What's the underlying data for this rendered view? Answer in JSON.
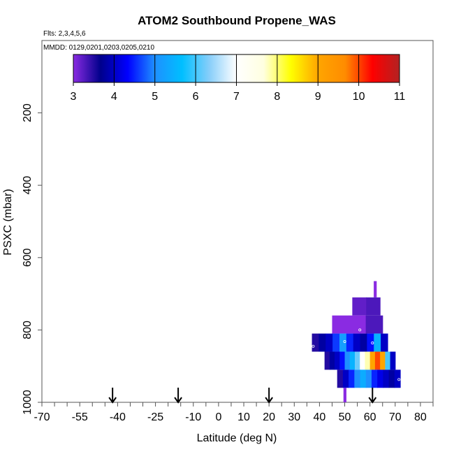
{
  "chart_data": {
    "type": "heatmap",
    "title": "ATOM2 Southbound Propene_WAS",
    "subtitle_flights": "Flts: 2,3,4,5,6",
    "subtitle_dates": "MMDD: 0129,0201,0203,0205,0210",
    "xlabel": "Latitude (deg N)",
    "ylabel": "PSXC (mbar)",
    "xlim": [
      -70,
      85
    ],
    "ylim": [
      1000,
      0
    ],
    "x_ticks": [
      -70,
      -55,
      -40,
      -25,
      -10,
      0,
      10,
      20,
      30,
      40,
      50,
      60,
      70,
      80
    ],
    "x_tick_labels": [
      "-70",
      "-55",
      "-40",
      "-25",
      "-10",
      "0",
      "10",
      "20",
      "30",
      "40",
      "50",
      "60",
      "70",
      "80"
    ],
    "x_minor_ticks": [
      -65,
      -60,
      -50,
      -45,
      -35,
      -30,
      -20,
      -15,
      -5,
      5,
      15,
      25,
      35,
      45,
      55,
      65,
      75,
      85
    ],
    "y_ticks": [
      200,
      400,
      600,
      800,
      1000
    ],
    "y_tick_labels": [
      "200",
      "400",
      "600",
      "800",
      "1000"
    ],
    "colorbar": {
      "range": [
        3,
        11
      ],
      "ticks": [
        3,
        4,
        5,
        6,
        7,
        8,
        9,
        10,
        11
      ],
      "tick_labels": [
        "3",
        "4",
        "5",
        "6",
        "7",
        "8",
        "9",
        "10",
        "11"
      ],
      "colors": [
        "#8a2be2",
        "#00008b",
        "#0000ff",
        "#1e90ff",
        "#00bfff",
        "#87cefa",
        "#ffffff",
        "#ffffe0",
        "#ffff00",
        "#ffa500",
        "#ff8c00",
        "#ff0000",
        "#b22222"
      ]
    },
    "arrows_latitude": [
      -42,
      -16,
      20,
      61
    ],
    "cells": [
      {
        "lat_min": 61.5,
        "lat_max": 62.5,
        "p_min": 665,
        "p_max": 710,
        "values": [
          3.0
        ]
      },
      {
        "lat_min": 53,
        "lat_max": 64,
        "p_min": 710,
        "p_max": 760,
        "values": [
          3.2,
          3.3
        ]
      },
      {
        "lat_min": 45,
        "lat_max": 65,
        "p_min": 760,
        "p_max": 810,
        "values": [
          3.0,
          3.0,
          3.3
        ]
      },
      {
        "lat_min": 37,
        "lat_max": 67,
        "p_min": 810,
        "p_max": 860,
        "values": [
          3.5,
          3.8,
          4.0,
          4.6,
          5.2,
          4.5,
          4.0,
          3.8,
          4.4,
          5.5,
          4.0
        ]
      },
      {
        "lat_min": 42,
        "lat_max": 70,
        "p_min": 860,
        "p_max": 910,
        "values": [
          3.5,
          3.8,
          4.0,
          4.4,
          5.0,
          5.5,
          6.2,
          7.0,
          7.8,
          9.0,
          10.0,
          9.0,
          6.0,
          4.0
        ]
      },
      {
        "lat_min": 47,
        "lat_max": 72,
        "p_min": 910,
        "p_max": 960,
        "values": [
          3.5,
          4.0,
          4.5,
          5.0,
          5.4,
          5.0,
          4.5,
          4.2,
          4.0,
          3.8,
          4.0
        ]
      },
      {
        "lat_min": 49.5,
        "lat_max": 50.5,
        "p_min": 960,
        "p_max": 1000,
        "values": [
          3.0
        ]
      }
    ],
    "markers": [
      {
        "lat": 37.5,
        "p": 845
      },
      {
        "lat": 50,
        "p": 832
      },
      {
        "lat": 56,
        "p": 800
      },
      {
        "lat": 61,
        "p": 836
      },
      {
        "lat": 71.5,
        "p": 937
      }
    ]
  }
}
